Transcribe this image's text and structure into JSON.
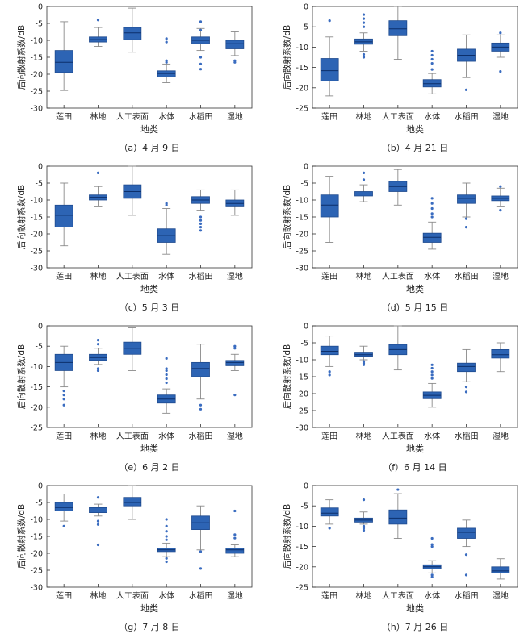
{
  "styles": {
    "box_fill": "#2d64b4",
    "box_stroke": "#1e4a8e",
    "median": "#0c2f6b",
    "whisker": "#8a8a8a",
    "outlier": "#3a6cc0",
    "axis": "#333333"
  },
  "categories": [
    "莲田",
    "林地",
    "人工表面",
    "水体",
    "水稻田",
    "湿地"
  ],
  "xlabel": "地类",
  "ylabel": "后向散射系数/dB",
  "chart_data": [
    {
      "type": "box",
      "caption": "（a）4 月 9 日",
      "ylim": [
        -30,
        0
      ],
      "yticks": [
        0,
        -5,
        -10,
        -15,
        -20,
        -25,
        -30
      ],
      "boxes": [
        {
          "category": "莲田",
          "whisker_low": -24.8,
          "q1": -19.5,
          "median": -16.5,
          "q3": -13.0,
          "whisker_high": -4.5,
          "outliers": []
        },
        {
          "category": "林地",
          "whisker_low": -11.8,
          "q1": -10.5,
          "median": -9.8,
          "q3": -9.0,
          "whisker_high": -6.2,
          "outliers": [
            -4.0
          ]
        },
        {
          "category": "人工表面",
          "whisker_low": -13.5,
          "q1": -9.8,
          "median": -7.8,
          "q3": -6.2,
          "whisker_high": -0.5,
          "outliers": []
        },
        {
          "category": "水体",
          "whisker_low": -22.5,
          "q1": -20.8,
          "median": -19.8,
          "q3": -19.0,
          "whisker_high": -17.0,
          "outliers": [
            -9.5,
            -10.5,
            -16.0,
            -16.5
          ]
        },
        {
          "category": "水稻田",
          "whisker_low": -13.0,
          "q1": -11.0,
          "median": -10.0,
          "q3": -9.0,
          "whisker_high": -6.5,
          "outliers": [
            -4.5,
            -7.0,
            -15.0,
            -17.0,
            -18.5
          ]
        },
        {
          "category": "湿地",
          "whisker_low": -14.5,
          "q1": -12.5,
          "median": -11.0,
          "q3": -10.0,
          "whisker_high": -7.5,
          "outliers": [
            -16.0,
            -16.5
          ]
        }
      ]
    },
    {
      "type": "box",
      "caption": "（b）4 月 21 日",
      "ylim": [
        -25,
        0
      ],
      "yticks": [
        0,
        -5,
        -10,
        -15,
        -20,
        -25
      ],
      "boxes": [
        {
          "category": "莲田",
          "whisker_low": -22.0,
          "q1": -18.3,
          "median": -15.8,
          "q3": -12.8,
          "whisker_high": -7.5,
          "outliers": [
            -3.5
          ]
        },
        {
          "category": "林地",
          "whisker_low": -11.0,
          "q1": -9.3,
          "median": -8.7,
          "q3": -8.0,
          "whisker_high": -6.5,
          "outliers": [
            -2.0,
            -3.0,
            -4.0,
            -5.0,
            -11.8,
            -12.5
          ]
        },
        {
          "category": "人工表面",
          "whisker_low": -13.0,
          "q1": -7.2,
          "median": -5.5,
          "q3": -3.5,
          "whisker_high": 0.0,
          "outliers": []
        },
        {
          "category": "水体",
          "whisker_low": -21.5,
          "q1": -19.8,
          "median": -19.0,
          "q3": -18.0,
          "whisker_high": -16.5,
          "outliers": [
            -11.0,
            -12.0,
            -13.0,
            -14.0,
            -15.5
          ]
        },
        {
          "category": "水稻田",
          "whisker_low": -17.5,
          "q1": -13.5,
          "median": -12.0,
          "q3": -10.5,
          "whisker_high": -7.0,
          "outliers": [
            -20.5
          ]
        },
        {
          "category": "湿地",
          "whisker_low": -12.5,
          "q1": -11.0,
          "median": -10.0,
          "q3": -9.0,
          "whisker_high": -7.0,
          "outliers": [
            -6.5,
            -16.0
          ]
        }
      ]
    },
    {
      "type": "box",
      "caption": "（c）5 月 3 日",
      "ylim": [
        -30,
        0
      ],
      "yticks": [
        0,
        -5,
        -10,
        -15,
        -20,
        -25,
        -30
      ],
      "boxes": [
        {
          "category": "莲田",
          "whisker_low": -23.5,
          "q1": -18.0,
          "median": -14.5,
          "q3": -11.5,
          "whisker_high": -5.0,
          "outliers": []
        },
        {
          "category": "林地",
          "whisker_low": -12.0,
          "q1": -10.0,
          "median": -9.2,
          "q3": -8.5,
          "whisker_high": -6.0,
          "outliers": [
            -2.0
          ]
        },
        {
          "category": "人工表面",
          "whisker_low": -14.5,
          "q1": -9.5,
          "median": -7.5,
          "q3": -5.5,
          "whisker_high": 0.0,
          "outliers": []
        },
        {
          "category": "水体",
          "whisker_low": -26.0,
          "q1": -22.5,
          "median": -20.5,
          "q3": -18.5,
          "whisker_high": -12.5,
          "outliers": [
            -11.0,
            -11.5
          ]
        },
        {
          "category": "水稻田",
          "whisker_low": -13.0,
          "q1": -11.0,
          "median": -10.0,
          "q3": -9.0,
          "whisker_high": -7.0,
          "outliers": [
            -15.0,
            -16.0,
            -17.0,
            -18.0,
            -19.0
          ]
        },
        {
          "category": "湿地",
          "whisker_low": -14.5,
          "q1": -12.0,
          "median": -11.0,
          "q3": -10.0,
          "whisker_high": -7.0,
          "outliers": []
        }
      ]
    },
    {
      "type": "box",
      "caption": "（d）5 月 15 日",
      "ylim": [
        -30,
        0
      ],
      "yticks": [
        0,
        -5,
        -10,
        -15,
        -20,
        -25,
        -30
      ],
      "boxes": [
        {
          "category": "莲田",
          "whisker_low": -22.5,
          "q1": -15.0,
          "median": -11.5,
          "q3": -8.5,
          "whisker_high": -3.0,
          "outliers": []
        },
        {
          "category": "林地",
          "whisker_low": -10.5,
          "q1": -8.8,
          "median": -8.2,
          "q3": -7.5,
          "whisker_high": -5.5,
          "outliers": [
            -2.0,
            -4.0
          ]
        },
        {
          "category": "人工表面",
          "whisker_low": -11.5,
          "q1": -7.5,
          "median": -6.0,
          "q3": -4.5,
          "whisker_high": -1.0,
          "outliers": []
        },
        {
          "category": "水体",
          "whisker_low": -24.5,
          "q1": -22.5,
          "median": -21.0,
          "q3": -19.8,
          "whisker_high": -16.5,
          "outliers": [
            -9.5,
            -11.0,
            -12.5,
            -14.0,
            -15.0
          ]
        },
        {
          "category": "水稻田",
          "whisker_low": -15.0,
          "q1": -11.0,
          "median": -9.5,
          "q3": -8.5,
          "whisker_high": -5.0,
          "outliers": [
            -15.5,
            -18.0
          ]
        },
        {
          "category": "湿地",
          "whisker_low": -12.0,
          "q1": -10.2,
          "median": -9.5,
          "q3": -8.8,
          "whisker_high": -6.5,
          "outliers": [
            -6.0,
            -13.0
          ]
        }
      ]
    },
    {
      "type": "box",
      "caption": "（e）6 月 2 日",
      "ylim": [
        -25,
        0
      ],
      "yticks": [
        0,
        -5,
        -10,
        -15,
        -20,
        -25
      ],
      "boxes": [
        {
          "category": "莲田",
          "whisker_low": -15.0,
          "q1": -11.0,
          "median": -9.0,
          "q3": -7.0,
          "whisker_high": -5.0,
          "outliers": [
            -16.0,
            -17.0,
            -18.0,
            -19.5
          ]
        },
        {
          "category": "林地",
          "whisker_low": -9.5,
          "q1": -8.5,
          "median": -7.8,
          "q3": -7.0,
          "whisker_high": -5.5,
          "outliers": [
            -3.5,
            -4.5,
            -10.5,
            -11.0
          ]
        },
        {
          "category": "人工表面",
          "whisker_low": -11.0,
          "q1": -7.0,
          "median": -5.5,
          "q3": -4.0,
          "whisker_high": -0.5,
          "outliers": []
        },
        {
          "category": "水体",
          "whisker_low": -21.5,
          "q1": -19.0,
          "median": -18.0,
          "q3": -17.0,
          "whisker_high": -15.5,
          "outliers": [
            -8.0,
            -10.5,
            -11.0,
            -12.0,
            -13.0,
            -14.0
          ]
        },
        {
          "category": "水稻田",
          "whisker_low": -18.0,
          "q1": -12.5,
          "median": -10.5,
          "q3": -9.0,
          "whisker_high": -4.5,
          "outliers": [
            -19.5,
            -20.5
          ]
        },
        {
          "category": "湿地",
          "whisker_low": -11.0,
          "q1": -9.8,
          "median": -9.0,
          "q3": -8.5,
          "whisker_high": -7.0,
          "outliers": [
            -5.0,
            -5.5,
            -17.0
          ]
        }
      ]
    },
    {
      "type": "box",
      "caption": "（f）6 月 14 日",
      "ylim": [
        -30,
        0
      ],
      "yticks": [
        0,
        -5,
        -10,
        -15,
        -20,
        -25,
        -30
      ],
      "boxes": [
        {
          "category": "莲田",
          "whisker_low": -12.0,
          "q1": -8.5,
          "median": -7.5,
          "q3": -6.0,
          "whisker_high": -3.0,
          "outliers": [
            -13.5,
            -14.5
          ]
        },
        {
          "category": "林地",
          "whisker_low": -10.0,
          "q1": -9.0,
          "median": -8.5,
          "q3": -8.0,
          "whisker_high": -6.0,
          "outliers": [
            -10.5,
            -11.0,
            -11.5
          ]
        },
        {
          "category": "人工表面",
          "whisker_low": -13.0,
          "q1": -8.5,
          "median": -7.0,
          "q3": -5.5,
          "whisker_high": 0.0,
          "outliers": []
        },
        {
          "category": "水体",
          "whisker_low": -24.0,
          "q1": -21.5,
          "median": -20.5,
          "q3": -19.5,
          "whisker_high": -17.0,
          "outliers": [
            -11.5,
            -12.5,
            -13.5,
            -14.5,
            -15.5
          ]
        },
        {
          "category": "水稻田",
          "whisker_low": -16.5,
          "q1": -13.5,
          "median": -12.0,
          "q3": -11.0,
          "whisker_high": -7.0,
          "outliers": [
            -18.0,
            -19.5
          ]
        },
        {
          "category": "湿地",
          "whisker_low": -13.5,
          "q1": -9.5,
          "median": -8.5,
          "q3": -7.0,
          "whisker_high": -5.0,
          "outliers": []
        }
      ]
    },
    {
      "type": "box",
      "caption": "（g）7 月 8 日",
      "ylim": [
        -30,
        0
      ],
      "yticks": [
        0,
        -5,
        -10,
        -15,
        -20,
        -25,
        -30
      ],
      "boxes": [
        {
          "category": "莲田",
          "whisker_low": -10.5,
          "q1": -7.5,
          "median": -6.5,
          "q3": -5.0,
          "whisker_high": -2.5,
          "outliers": [
            -12.0
          ]
        },
        {
          "category": "林地",
          "whisker_low": -9.0,
          "q1": -8.0,
          "median": -7.5,
          "q3": -6.5,
          "whisker_high": -5.5,
          "outliers": [
            -3.5,
            -10.5,
            -11.5,
            -17.5
          ]
        },
        {
          "category": "人工表面",
          "whisker_low": -10.0,
          "q1": -6.0,
          "median": -5.0,
          "q3": -3.5,
          "whisker_high": 0.0,
          "outliers": []
        },
        {
          "category": "水体",
          "whisker_low": -21.0,
          "q1": -19.5,
          "median": -19.0,
          "q3": -18.5,
          "whisker_high": -17.0,
          "outliers": [
            -10.0,
            -12.0,
            -13.5,
            -15.0,
            -16.0,
            -21.5,
            -22.5
          ]
        },
        {
          "category": "水稻田",
          "whisker_low": -19.0,
          "q1": -13.0,
          "median": -11.0,
          "q3": -9.0,
          "whisker_high": -6.0,
          "outliers": [
            -19.5,
            -24.5
          ]
        },
        {
          "category": "湿地",
          "whisker_low": -21.0,
          "q1": -20.0,
          "median": -19.0,
          "q3": -18.5,
          "whisker_high": -17.5,
          "outliers": [
            -7.5,
            -14.5,
            -15.5
          ]
        }
      ]
    },
    {
      "type": "box",
      "caption": "（h）7 月 26 日",
      "ylim": [
        -25,
        0
      ],
      "yticks": [
        0,
        -5,
        -10,
        -15,
        -20,
        -25
      ],
      "boxes": [
        {
          "category": "莲田",
          "whisker_low": -9.5,
          "q1": -7.5,
          "median": -6.8,
          "q3": -5.5,
          "whisker_high": -3.5,
          "outliers": [
            -10.5
          ]
        },
        {
          "category": "林地",
          "whisker_low": -9.5,
          "q1": -9.0,
          "median": -8.5,
          "q3": -8.0,
          "whisker_high": -6.5,
          "outliers": [
            -3.5,
            -10.0,
            -10.5,
            -11.0
          ]
        },
        {
          "category": "人工表面",
          "whisker_low": -13.0,
          "q1": -9.5,
          "median": -8.0,
          "q3": -6.0,
          "whisker_high": -2.0,
          "outliers": [
            -1.0
          ]
        },
        {
          "category": "水体",
          "whisker_low": -21.5,
          "q1": -20.5,
          "median": -20.0,
          "q3": -19.5,
          "whisker_high": -18.5,
          "outliers": [
            -13.0,
            -14.5,
            -15.0,
            -22.0,
            -22.5
          ]
        },
        {
          "category": "水稻田",
          "whisker_low": -15.0,
          "q1": -13.0,
          "median": -11.5,
          "q3": -10.5,
          "whisker_high": -8.5,
          "outliers": [
            -17.0,
            -22.0
          ]
        },
        {
          "category": "湿地",
          "whisker_low": -23.0,
          "q1": -21.5,
          "median": -21.0,
          "q3": -20.0,
          "whisker_high": -18.0,
          "outliers": []
        }
      ]
    }
  ]
}
